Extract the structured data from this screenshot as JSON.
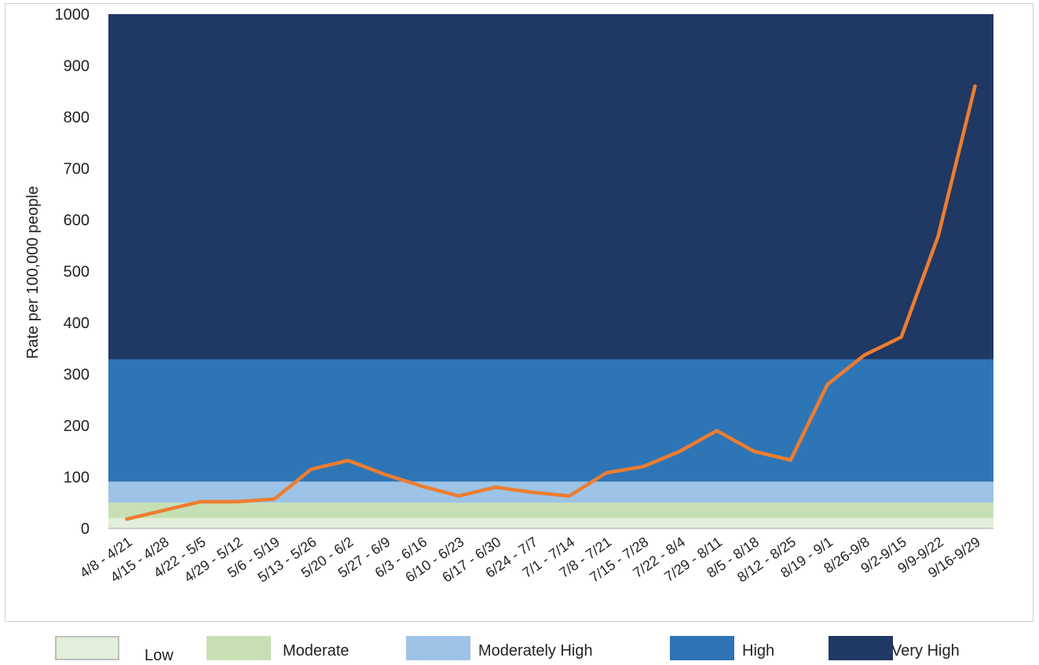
{
  "chart_data": {
    "type": "line",
    "title": "",
    "xlabel": "",
    "ylabel": "Rate per 100,000 people",
    "ylim": [
      0,
      1000
    ],
    "yticks": [
      0,
      100,
      200,
      300,
      400,
      500,
      600,
      700,
      800,
      900,
      1000
    ],
    "categories": [
      "4/8 - 4/21",
      "4/15 - 4/28",
      "4/22 - 5/5",
      "4/29 - 5/12",
      "5/6 - 5/19",
      "5/13 - 5/26",
      "5/20 - 6/2",
      "5/27 - 6/9",
      "6/3 - 6/16",
      "6/10 - 6/23",
      "6/17 - 6/30",
      "6/24 - 7/7",
      "7/1 - 7/14",
      "7/8 - 7/21",
      "7/15 - 7/28",
      "7/22 - 8/4",
      "7/29 - 8/11",
      "8/5 - 8/18",
      "8/12 - 8/25",
      "8/19 - 9/1",
      "8/26-9/8",
      "9/2-9/15",
      "9/9-9/22",
      "9/16-9/29"
    ],
    "series": [
      {
        "values": [
          18,
          35,
          52,
          52,
          57,
          115,
          132,
          105,
          82,
          63,
          80,
          70,
          63,
          108,
          120,
          150,
          190,
          150,
          133,
          280,
          337,
          372,
          568,
          860
        ],
        "color": "#ED7D31"
      }
    ],
    "bands": [
      {
        "name": "Low",
        "from": 0,
        "to": 20,
        "color": "#E2EFDA"
      },
      {
        "name": "Moderate",
        "from": 20,
        "to": 50,
        "color": "#C6E0B4"
      },
      {
        "name": "Moderately High",
        "from": 50,
        "to": 91,
        "color": "#9DC3E6"
      },
      {
        "name": "High",
        "from": 91,
        "to": 329,
        "color": "#2E75B6"
      },
      {
        "name": "Very High",
        "from": 329,
        "to": 1000,
        "color": "#203864"
      }
    ],
    "legend_position": "bottom"
  }
}
